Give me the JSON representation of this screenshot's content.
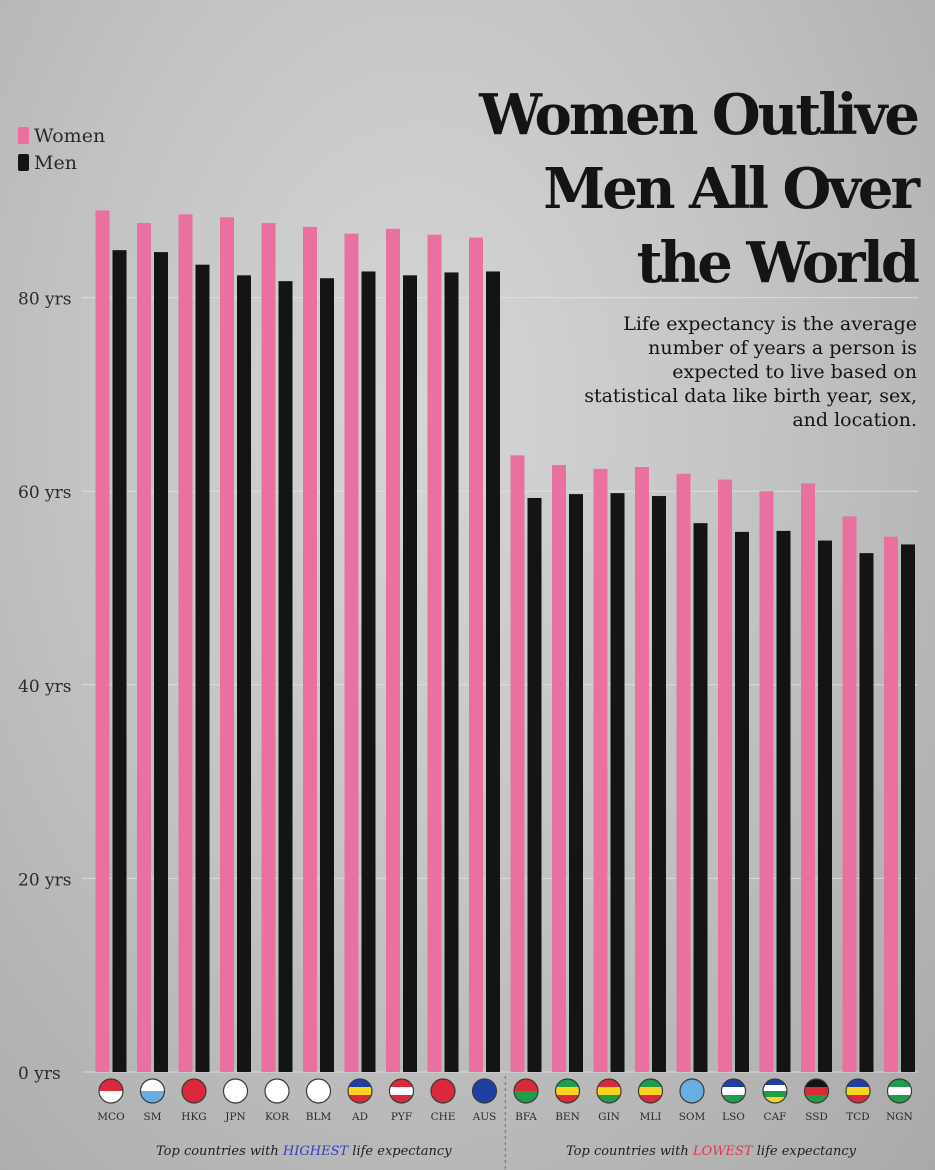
{
  "title_lines": [
    "Women Outlive",
    "Men  All Over",
    "the World"
  ],
  "description": "Life expectancy is the average number of years a person is expected to live based on statistical data like birth year, sex, and location.",
  "legend": [
    {
      "label": "Women",
      "color": "#e8719f"
    },
    {
      "label": "Men",
      "color": "#141414"
    }
  ],
  "group_labels": {
    "highest": {
      "before": "Top countries with ",
      "highlight": "HIGHEST",
      "after": " life expectancy",
      "highlight_color": "#3340c4"
    },
    "lowest": {
      "before": "Top countries with ",
      "highlight": "LOWEST",
      "after": " life expectancy",
      "highlight_color": "#e03a4a"
    }
  },
  "chart_data": {
    "type": "bar",
    "categories": [
      "MCO",
      "SM",
      "HKG",
      "JPN",
      "KOR",
      "BLM",
      "AD",
      "PYF",
      "CHE",
      "AUS",
      "BFA",
      "BEN",
      "GIN",
      "MLI",
      "SOM",
      "LSO",
      "CAF",
      "SSD",
      "TCD",
      "NGN"
    ],
    "series": [
      {
        "name": "Women",
        "color": "#e8719f",
        "values": [
          89.0,
          87.7,
          88.6,
          88.3,
          87.7,
          87.3,
          86.6,
          87.1,
          86.5,
          86.2,
          63.7,
          62.7,
          62.3,
          62.5,
          61.8,
          61.2,
          60.0,
          60.8,
          57.4,
          55.3
        ]
      },
      {
        "name": "Men",
        "color": "#141414",
        "values": [
          84.9,
          84.7,
          83.4,
          82.3,
          81.7,
          82.0,
          82.7,
          82.3,
          82.6,
          82.7,
          59.3,
          59.7,
          59.8,
          59.5,
          56.7,
          55.8,
          55.9,
          54.9,
          53.6,
          54.5
        ]
      }
    ],
    "y_ticks": [
      0,
      20,
      40,
      60,
      80
    ],
    "y_tick_labels": [
      "0 yrs",
      "20 yrs",
      "40 yrs",
      "60 yrs",
      "80 yrs"
    ],
    "ylim": [
      0,
      90
    ],
    "grid": true,
    "legend_position": "top-left",
    "flags": [
      {
        "name": "MCO-flag-icon",
        "colors": [
          "#d9293b",
          "#ffffff"
        ]
      },
      {
        "name": "SM-flag-icon",
        "colors": [
          "#ffffff",
          "#6aaee0"
        ]
      },
      {
        "name": "HKG-flag-icon",
        "colors": [
          "#d9293b"
        ]
      },
      {
        "name": "JPN-flag-icon",
        "colors": [
          "#ffffff"
        ]
      },
      {
        "name": "KOR-flag-icon",
        "colors": [
          "#ffffff"
        ]
      },
      {
        "name": "BLM-flag-icon",
        "colors": [
          "#ffffff"
        ]
      },
      {
        "name": "AD-flag-icon",
        "colors": [
          "#1f3fa3",
          "#f6d420",
          "#d9293b"
        ]
      },
      {
        "name": "PYF-flag-icon",
        "colors": [
          "#d9293b",
          "#ffffff",
          "#d9293b"
        ]
      },
      {
        "name": "CHE-flag-icon",
        "colors": [
          "#d9293b"
        ]
      },
      {
        "name": "AUS-flag-icon",
        "colors": [
          "#1f3fa3"
        ]
      },
      {
        "name": "BFA-flag-icon",
        "colors": [
          "#d9293b",
          "#1f9d49"
        ]
      },
      {
        "name": "BEN-flag-icon",
        "colors": [
          "#1f9d49",
          "#f6d420",
          "#d9293b"
        ]
      },
      {
        "name": "GIN-flag-icon",
        "colors": [
          "#d9293b",
          "#f6d420",
          "#1f9d49"
        ]
      },
      {
        "name": "MLI-flag-icon",
        "colors": [
          "#1f9d49",
          "#f6d420",
          "#d9293b"
        ]
      },
      {
        "name": "SOM-flag-icon",
        "colors": [
          "#6aaee0"
        ]
      },
      {
        "name": "LSO-flag-icon",
        "colors": [
          "#1f3fa3",
          "#ffffff",
          "#1f9d49"
        ]
      },
      {
        "name": "CAF-flag-icon",
        "colors": [
          "#1f3fa3",
          "#ffffff",
          "#1f9d49",
          "#f6d420"
        ]
      },
      {
        "name": "SSD-flag-icon",
        "colors": [
          "#141414",
          "#d9293b",
          "#1f9d49"
        ]
      },
      {
        "name": "TCD-flag-icon",
        "colors": [
          "#1f3fa3",
          "#f6d420",
          "#d9293b"
        ]
      },
      {
        "name": "NGN-flag-icon",
        "colors": [
          "#1f9d49",
          "#ffffff",
          "#1f9d49"
        ]
      }
    ]
  }
}
